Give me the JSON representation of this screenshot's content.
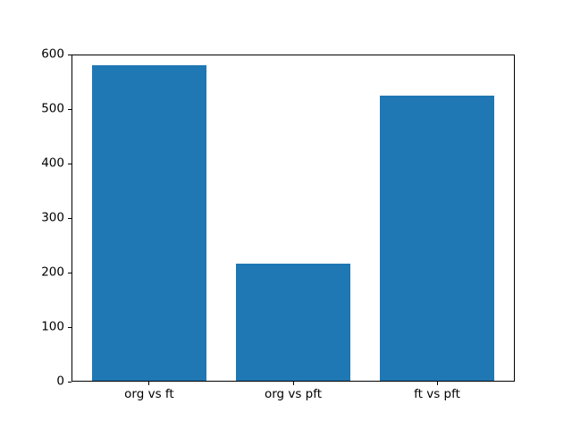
{
  "figure": {
    "background": "#ffffff",
    "title": ""
  },
  "chart_data": {
    "type": "bar",
    "categories": [
      "org vs ft",
      "org vs pft",
      "ft vs pft"
    ],
    "values": [
      580,
      216,
      525
    ],
    "title": "",
    "xlabel": "",
    "ylabel": "",
    "ylim": [
      0,
      600
    ],
    "yticks": [
      0,
      100,
      200,
      300,
      400,
      500,
      600
    ],
    "grid": false,
    "legend": null,
    "bar_color": "#1f77b4",
    "axis_color": "#000000"
  }
}
